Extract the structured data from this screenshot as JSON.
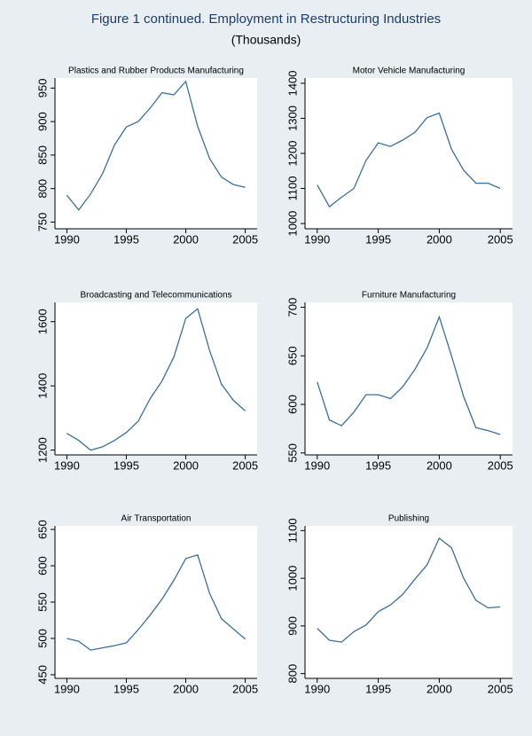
{
  "title": "Figure 1 continued.  Employment in Restructuring Industries",
  "subtitle": "(Thousands)",
  "chart_data": [
    {
      "type": "line",
      "title": "Plastics and Rubber Products Manufacturing",
      "x": [
        1990,
        1991,
        1992,
        1993,
        1994,
        1995,
        1996,
        1997,
        1998,
        1999,
        2000,
        2001,
        2002,
        2003,
        2004,
        2005
      ],
      "values": [
        790,
        768,
        792,
        822,
        865,
        892,
        900,
        920,
        943,
        940,
        960,
        893,
        845,
        817,
        806,
        802
      ],
      "color": "#3d6f98",
      "xlim": [
        1989,
        2006
      ],
      "xticks": [
        1990,
        1995,
        2000,
        2005
      ],
      "ylim": [
        740,
        965
      ],
      "yticks": [
        750,
        800,
        850,
        900,
        950
      ]
    },
    {
      "type": "line",
      "title": "Motor Vehicle Manufacturing",
      "x": [
        1990,
        1991,
        1992,
        1993,
        1994,
        1995,
        1996,
        1997,
        1998,
        1999,
        2000,
        2001,
        2002,
        2003,
        2004,
        2005
      ],
      "values": [
        1110,
        1048,
        1075,
        1100,
        1180,
        1230,
        1220,
        1238,
        1260,
        1302,
        1315,
        1212,
        1152,
        1115,
        1115,
        1100
      ],
      "color": "#3d6f98",
      "xlim": [
        1989,
        2006
      ],
      "xticks": [
        1990,
        1995,
        2000,
        2005
      ],
      "ylim": [
        985,
        1415
      ],
      "yticks": [
        1000,
        1100,
        1200,
        1300,
        1400
      ]
    },
    {
      "type": "line",
      "title": "Broadcasting and Telecommunications",
      "x": [
        1990,
        1991,
        1992,
        1993,
        1994,
        1995,
        1996,
        1997,
        1998,
        1999,
        2000,
        2001,
        2002,
        2003,
        2004,
        2005
      ],
      "values": [
        1252,
        1230,
        1200,
        1210,
        1230,
        1255,
        1290,
        1360,
        1415,
        1490,
        1610,
        1640,
        1510,
        1405,
        1355,
        1322
      ],
      "color": "#3d6f98",
      "xlim": [
        1989,
        2006
      ],
      "xticks": [
        1990,
        1995,
        2000,
        2005
      ],
      "ylim": [
        1185,
        1660
      ],
      "yticks": [
        1200,
        1400,
        1600
      ]
    },
    {
      "type": "line",
      "title": "Furniture Manufacturing",
      "x": [
        1990,
        1991,
        1992,
        1993,
        1994,
        1995,
        1996,
        1997,
        1998,
        1999,
        2000,
        2001,
        2002,
        2003,
        2004,
        2005
      ],
      "values": [
        623,
        584,
        578,
        592,
        610,
        610,
        606,
        618,
        636,
        658,
        690,
        650,
        608,
        576,
        573,
        569
      ],
      "color": "#3d6f98",
      "xlim": [
        1989,
        2006
      ],
      "xticks": [
        1990,
        1995,
        2000,
        2005
      ],
      "ylim": [
        548,
        705
      ],
      "yticks": [
        550,
        600,
        650,
        700
      ]
    },
    {
      "type": "line",
      "title": "Air Transportation",
      "x": [
        1990,
        1991,
        1992,
        1993,
        1994,
        1995,
        1996,
        1997,
        1998,
        1999,
        2000,
        2001,
        2002,
        2003,
        2004,
        2005
      ],
      "values": [
        500,
        496,
        484,
        487,
        490,
        494,
        512,
        532,
        554,
        580,
        610,
        615,
        562,
        527,
        513,
        499
      ],
      "color": "#3d6f98",
      "xlim": [
        1989,
        2006
      ],
      "xticks": [
        1990,
        1995,
        2000,
        2005
      ],
      "ylim": [
        445,
        655
      ],
      "yticks": [
        450,
        500,
        550,
        600,
        650
      ]
    },
    {
      "type": "line",
      "title": "Publishing",
      "x": [
        1990,
        1991,
        1992,
        1993,
        1994,
        1995,
        1996,
        1997,
        1998,
        1999,
        2000,
        2001,
        2002,
        2003,
        2004,
        2005
      ],
      "values": [
        895,
        870,
        866,
        888,
        902,
        930,
        944,
        966,
        998,
        1028,
        1084,
        1064,
        1000,
        954,
        938,
        940
      ],
      "color": "#3d6f98",
      "xlim": [
        1989,
        2006
      ],
      "xticks": [
        1990,
        1995,
        2000,
        2005
      ],
      "ylim": [
        790,
        1110
      ],
      "yticks": [
        800,
        900,
        1000,
        1100
      ]
    }
  ]
}
